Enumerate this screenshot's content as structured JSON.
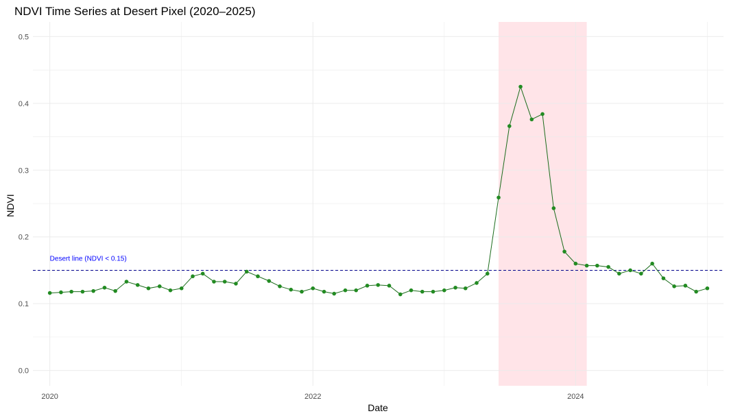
{
  "chart_data": {
    "type": "line",
    "title": "NDVI Time Series at Desert Pixel (2020–2025)",
    "xlabel": "Date",
    "ylabel": "NDVI",
    "x_ticks": [
      "2020-01-01",
      "2022-01-01",
      "2024-01-01"
    ],
    "x_tick_labels": [
      "2020",
      "2022",
      "2024"
    ],
    "xlim": [
      "2019-11-15",
      "2025-02-15"
    ],
    "y_ticks": [
      0.0,
      0.1,
      0.2,
      0.3,
      0.4,
      0.5
    ],
    "y_tick_labels": [
      "0.0",
      "0.1",
      "0.2",
      "0.3",
      "0.4",
      "0.5"
    ],
    "ylim": [
      -0.023,
      0.522
    ],
    "grid": true,
    "colors": {
      "line": "#1a6b1a",
      "point": "#228b22",
      "threshold": "#00008b",
      "annotation": "#0000ff",
      "highlight": "#ffe4e8",
      "grid": "#ebebeb"
    },
    "threshold": {
      "y": 0.15,
      "label": "Desert line (NDVI < 0.15)"
    },
    "highlight": {
      "x_start": "2023-06-01",
      "x_end": "2024-02-01"
    },
    "series": [
      {
        "x": [
          "2020-01-01",
          "2020-02-01",
          "2020-03-01",
          "2020-04-01",
          "2020-05-01",
          "2020-06-01",
          "2020-07-01",
          "2020-08-01",
          "2020-09-01",
          "2020-10-01",
          "2020-11-01",
          "2020-12-01",
          "2021-01-01",
          "2021-02-01",
          "2021-03-01",
          "2021-04-01",
          "2021-05-01",
          "2021-06-01",
          "2021-07-01",
          "2021-08-01",
          "2021-09-01",
          "2021-10-01",
          "2021-11-01",
          "2021-12-01",
          "2022-01-01",
          "2022-02-01",
          "2022-03-01",
          "2022-04-01",
          "2022-05-01",
          "2022-06-01",
          "2022-07-01",
          "2022-08-01",
          "2022-09-01",
          "2022-10-01",
          "2022-11-01",
          "2022-12-01",
          "2023-01-01",
          "2023-02-01",
          "2023-03-01",
          "2023-04-01",
          "2023-05-01",
          "2023-06-01",
          "2023-07-01",
          "2023-08-01",
          "2023-09-01",
          "2023-10-01",
          "2023-11-01",
          "2023-12-01",
          "2024-01-01",
          "2024-02-01",
          "2024-03-01",
          "2024-04-01",
          "2024-05-01",
          "2024-06-01",
          "2024-07-01",
          "2024-08-01",
          "2024-09-01",
          "2024-10-01",
          "2024-11-01",
          "2024-12-01",
          "2025-01-01"
        ],
        "y": [
          0.116,
          0.117,
          0.118,
          0.118,
          0.119,
          0.124,
          0.119,
          0.133,
          0.128,
          0.123,
          0.126,
          0.12,
          0.123,
          0.141,
          0.145,
          0.133,
          0.133,
          0.13,
          0.148,
          0.141,
          0.134,
          0.126,
          0.121,
          0.118,
          0.123,
          0.118,
          0.115,
          0.12,
          0.12,
          0.127,
          0.128,
          0.127,
          0.114,
          0.12,
          0.118,
          0.118,
          0.12,
          0.124,
          0.123,
          0.131,
          0.145,
          0.259,
          0.366,
          0.425,
          0.376,
          0.384,
          0.243,
          0.178,
          0.16,
          0.157,
          0.157,
          0.155,
          0.145,
          0.15,
          0.145,
          0.16,
          0.138,
          0.126,
          0.127,
          0.118,
          0.123
        ]
      }
    ]
  }
}
